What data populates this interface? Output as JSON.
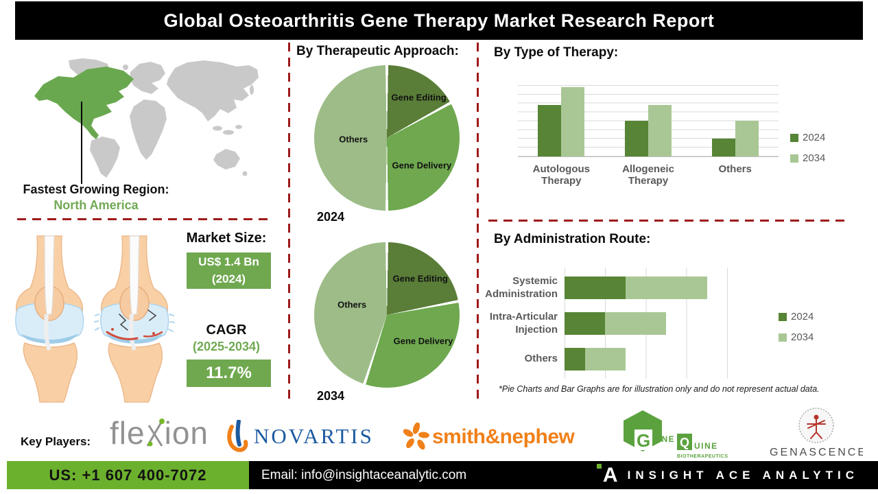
{
  "header": {
    "title": "Global Osteoarthritis Gene Therapy Market Research Report"
  },
  "left": {
    "region_label": "Fastest Growing Region:",
    "region_value": "North America",
    "market_size_label": "Market Size:",
    "market_size_value": "US$ 1.4 Bn",
    "market_size_year": "(2024)",
    "cagr_label": "CAGR",
    "cagr_period": "(2025-2034)",
    "cagr_value": "11.7%"
  },
  "sections": {
    "therapeutic": "By Therapeutic Approach:",
    "type_of_therapy": "By Type of Therapy:",
    "admin_route": "By Administration Route:"
  },
  "disclaimer": "*Pie Charts and Bar Graphs are for illustration only and do not represent actual data.",
  "key_players": {
    "label": "Key Players:",
    "flexion_part1": "fle",
    "flexion_part2": "ion",
    "novartis": "NOVARTIS",
    "smith_nephew": "smith&nephew",
    "genequine": {
      "g": "G",
      "ene": "ENE",
      "q": "Q",
      "uine": "UINE",
      "sub": "BIOTHERAPEUTICS"
    },
    "genascence": "GENASCENCE"
  },
  "footer": {
    "phone": "US: +1 607 400-7072",
    "email": "Email: info@insightaceanalytic.com",
    "brand": "INSIGHT ACE ANALYTIC",
    "logo_letter": "A"
  },
  "colors": {
    "dark_green_bar": "#578435",
    "light_green_bar": "#a9c795",
    "pie_dark": "#5a7d38",
    "pie_mid": "#6fa84f",
    "pie_light": "#9dbc88",
    "accent_green_box": "#6fa84f",
    "text_green": "#70a953",
    "red_dash": "#9e1a1a",
    "footer_green": "#6cb12e",
    "map_highlight": "#6aa84f",
    "map_gray": "#c9c9c9"
  },
  "chart_data": [
    {
      "type": "pie",
      "year": "2024",
      "title": "By Therapeutic Approach (2024)",
      "labels": [
        "Gene Editing",
        "Gene Delivery",
        "Others"
      ],
      "values": [
        17,
        33,
        50
      ],
      "colors": [
        "#5a7d38",
        "#6fa84f",
        "#9dbc88"
      ],
      "start_angle_deg": 0,
      "note": "illustrative only"
    },
    {
      "type": "pie",
      "year": "2034",
      "title": "By Therapeutic Approach (2034)",
      "labels": [
        "Gene Editing",
        "Gene Delivery",
        "Others"
      ],
      "values": [
        22,
        33,
        45
      ],
      "colors": [
        "#5a7d38",
        "#6fa84f",
        "#9dbc88"
      ],
      "start_angle_deg": 0,
      "note": "illustrative only"
    },
    {
      "type": "bar",
      "title": "By Type of Therapy",
      "categories": [
        "Autologous Therapy",
        "Allogeneic Therapy",
        "Others"
      ],
      "series": [
        {
          "name": "2024",
          "color": "#578435",
          "values": [
            5.8,
            4.0,
            2.0
          ]
        },
        {
          "name": "2034",
          "color": "#a9c795",
          "values": [
            7.8,
            5.8,
            4.0
          ]
        }
      ],
      "ylim": [
        0,
        9
      ],
      "grid": true,
      "legend_position": "right",
      "note": "illustrative only, no value labels shown"
    },
    {
      "type": "hbar-stacked",
      "title": "By Administration Route",
      "categories": [
        "Systemic Administration",
        "Intra-Articular Injection",
        "Others"
      ],
      "series": [
        {
          "name": "2024",
          "color": "#578435",
          "values": [
            1.5,
            1.0,
            0.5
          ]
        },
        {
          "name": "2034",
          "color": "#a9c795",
          "values": [
            2.0,
            1.5,
            1.0
          ]
        }
      ],
      "xlim": [
        0,
        4.5
      ],
      "grid": true,
      "legend_position": "right",
      "note": "illustrative only, no value labels shown"
    }
  ]
}
